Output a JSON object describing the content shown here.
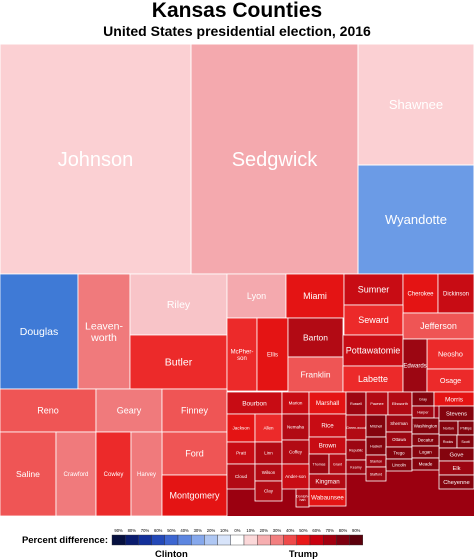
{
  "chart_data": {
    "type": "treemap",
    "title": "Kansas Counties",
    "subtitle": "United States presidential election, 2016",
    "colors": {
      "clinton_strong": "#0a2a8a",
      "clinton_mid": "#4a7fe0",
      "clinton_light": "#aac6f0",
      "trump_light": "#f7c6c8",
      "trump_mid": "#f25c5c",
      "trump_strong": "#e81010",
      "trump_dark": "#a80010",
      "trump_darkest": "#7a0010"
    },
    "cells": [
      {
        "name": "Johnson",
        "winner": "Trump",
        "margin": 3
      },
      {
        "name": "Sedgwick",
        "winner": "Trump",
        "margin": 18
      },
      {
        "name": "Shawnee",
        "winner": "Trump",
        "margin": 3
      },
      {
        "name": "Wyandotte",
        "winner": "Clinton",
        "margin": 31
      },
      {
        "name": "Douglas",
        "winner": "Clinton",
        "margin": 40
      },
      {
        "name": "Leaven-worth",
        "winner": "Trump",
        "margin": 26
      },
      {
        "name": "Riley",
        "winner": "Trump",
        "margin": 12
      },
      {
        "name": "Butler",
        "winner": "Trump",
        "margin": 43
      },
      {
        "name": "Lyon",
        "winner": "Trump",
        "margin": 18
      },
      {
        "name": "Miami",
        "winner": "Trump",
        "margin": 47
      },
      {
        "name": "Sumner",
        "winner": "Trump",
        "margin": 53
      },
      {
        "name": "Cherokee",
        "winner": "Trump",
        "margin": 50
      },
      {
        "name": "Dickinson",
        "winner": "Trump",
        "margin": 54
      },
      {
        "name": "Seward",
        "winner": "Trump",
        "margin": 38
      },
      {
        "name": "Jefferson",
        "winner": "Trump",
        "margin": 34
      },
      {
        "name": "McPher-son",
        "winner": "Trump",
        "margin": 41
      },
      {
        "name": "Ellis",
        "winner": "Trump",
        "margin": 47
      },
      {
        "name": "Barton",
        "winner": "Trump",
        "margin": 56
      },
      {
        "name": "Pottawatomie",
        "winner": "Trump",
        "margin": 54
      },
      {
        "name": "Neosho",
        "winner": "Trump",
        "margin": 44
      },
      {
        "name": "Franklin",
        "winner": "Trump",
        "margin": 36
      },
      {
        "name": "Labette",
        "winner": "Trump",
        "margin": 38
      },
      {
        "name": "Edwards",
        "winner": "Trump",
        "margin": 66
      },
      {
        "name": "Osage",
        "winner": "Trump",
        "margin": 43
      },
      {
        "name": "Reno",
        "winner": "Trump",
        "margin": 35
      },
      {
        "name": "Geary",
        "winner": "Trump",
        "margin": 24
      },
      {
        "name": "Finney",
        "winner": "Trump",
        "margin": 33
      },
      {
        "name": "Ford",
        "winner": "Trump",
        "margin": 32
      },
      {
        "name": "Saline",
        "winner": "Trump",
        "margin": 33
      },
      {
        "name": "Crawford",
        "winner": "Trump",
        "margin": 24
      },
      {
        "name": "Cowley",
        "winner": "Trump",
        "margin": 40
      },
      {
        "name": "Harvey",
        "winner": "Trump",
        "margin": 22
      },
      {
        "name": "Montgomery",
        "winner": "Trump",
        "margin": 51
      },
      {
        "name": "Bourbon",
        "winner": "Trump",
        "margin": 53
      },
      {
        "name": "Marion",
        "winner": "Trump",
        "margin": 54
      },
      {
        "name": "Marshall",
        "winner": "Trump",
        "margin": 47
      },
      {
        "name": "Russell",
        "winner": "Trump",
        "margin": 64
      },
      {
        "name": "Pawnee",
        "winner": "Trump",
        "margin": 58
      },
      {
        "name": "Ellsworth",
        "winner": "Trump",
        "margin": 56
      },
      {
        "name": "Gray",
        "winner": "Trump",
        "margin": 72
      },
      {
        "name": "Harper",
        "winner": "Trump",
        "margin": 62
      },
      {
        "name": "Jackson",
        "winner": "Trump",
        "margin": 46
      },
      {
        "name": "Allen",
        "winner": "Trump",
        "margin": 44
      },
      {
        "name": "Rice",
        "winner": "Trump",
        "margin": 54
      },
      {
        "name": "Nemaha",
        "winner": "Trump",
        "margin": 61
      },
      {
        "name": "Brown",
        "winner": "Trump",
        "margin": 52
      },
      {
        "name": "Green-wood",
        "winner": "Trump",
        "margin": 58
      },
      {
        "name": "Mitchell",
        "winner": "Trump",
        "margin": 68
      },
      {
        "name": "Sherman",
        "winner": "Trump",
        "margin": 64
      },
      {
        "name": "Morris",
        "winner": "Trump",
        "margin": 48
      },
      {
        "name": "Ottawa",
        "winner": "Trump",
        "margin": 66
      },
      {
        "name": "Washington",
        "winner": "Trump",
        "margin": 69
      },
      {
        "name": "Stevens",
        "winner": "Trump",
        "margin": 74
      },
      {
        "name": "Norton",
        "winner": "Trump",
        "margin": 70
      },
      {
        "name": "Phillips",
        "winner": "Trump",
        "margin": 72
      },
      {
        "name": "Rooks",
        "winner": "Trump",
        "margin": 74
      },
      {
        "name": "Scott",
        "winner": "Trump",
        "margin": 73
      },
      {
        "name": "Gove",
        "winner": "Trump",
        "margin": 76
      },
      {
        "name": "Pratt",
        "winner": "Trump",
        "margin": 52
      },
      {
        "name": "Linn",
        "winner": "Trump",
        "margin": 56
      },
      {
        "name": "Coffey",
        "winner": "Trump",
        "margin": 57
      },
      {
        "name": "Thomas",
        "winner": "Trump",
        "margin": 64
      },
      {
        "name": "Grant",
        "winner": "Trump",
        "margin": 56
      },
      {
        "name": "Republic",
        "winner": "Trump",
        "margin": 66
      },
      {
        "name": "Haskell",
        "winner": "Trump",
        "margin": 70
      },
      {
        "name": "Trego",
        "winner": "Trump",
        "margin": 68
      },
      {
        "name": "Decatur",
        "winner": "Trump",
        "margin": 68
      },
      {
        "name": "Logan",
        "winner": "Trump",
        "margin": 76
      },
      {
        "name": "Elk",
        "winner": "Trump",
        "margin": 66
      },
      {
        "name": "Cheyenne",
        "winner": "Trump",
        "margin": 70
      },
      {
        "name": "Kingman",
        "winner": "Trump",
        "margin": 58
      },
      {
        "name": "Kearny",
        "winner": "Trump",
        "margin": 66
      },
      {
        "name": "Stanton",
        "winner": "Trump",
        "margin": 62
      },
      {
        "name": "Lincoln",
        "winner": "Trump",
        "margin": 68
      },
      {
        "name": "Cloud",
        "winner": "Trump",
        "margin": 56
      },
      {
        "name": "Wilson",
        "winner": "Trump",
        "margin": 60
      },
      {
        "name": "Clay",
        "winner": "Trump",
        "margin": 58
      },
      {
        "name": "Ander-son",
        "winner": "Trump",
        "margin": 54
      },
      {
        "name": "Doniph-han",
        "winner": "Trump",
        "margin": 56
      },
      {
        "name": "Wabaunsee",
        "winner": "Trump",
        "margin": 50
      },
      {
        "name": "Stafford",
        "winner": "Trump",
        "margin": 62
      },
      {
        "name": "Meade",
        "winner": "Trump",
        "margin": 68
      }
    ],
    "legend": {
      "label": "Percent difference:",
      "ticks": [
        "90%",
        "80%",
        "70%",
        "60%",
        "50%",
        "40%",
        "30%",
        "20%",
        "10%",
        "0%",
        "10%",
        "20%",
        "30%",
        "40%",
        "50%",
        "60%",
        "70%",
        "80%",
        "90%"
      ],
      "left_caption": "Clinton",
      "right_caption": "Trump",
      "swatches": [
        "#06103f",
        "#0a1c6e",
        "#13309a",
        "#2449b8",
        "#3d66d1",
        "#5d86e0",
        "#86a8ec",
        "#afc7f3",
        "#d8e4fa",
        "#ffffff",
        "#fbd8d9",
        "#f6aeb0",
        "#f27f80",
        "#ee4a4a",
        "#e81818",
        "#c80010",
        "#a20010",
        "#7e0010",
        "#5c000c"
      ]
    }
  }
}
